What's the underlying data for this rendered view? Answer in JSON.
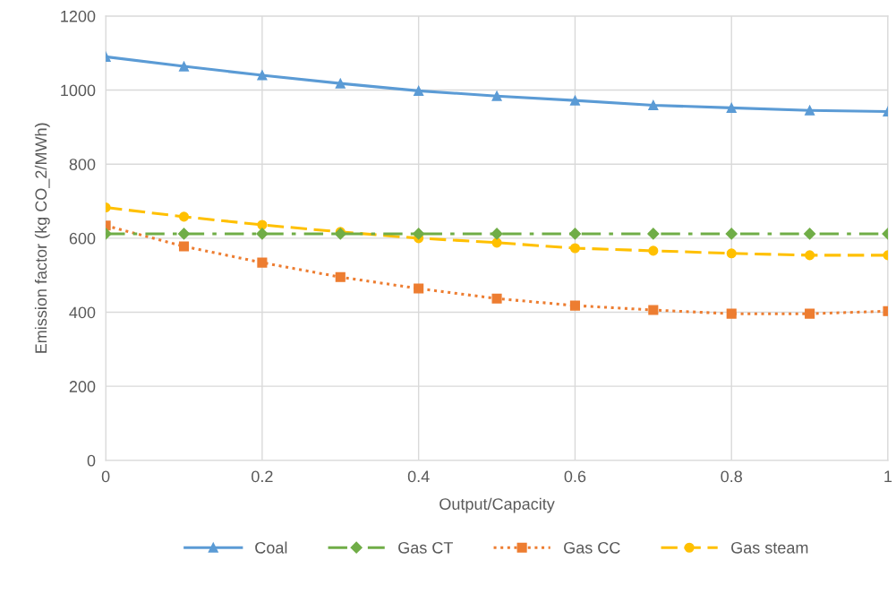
{
  "chart_data": {
    "type": "line",
    "xlabel": "Output/Capacity",
    "ylabel": "Emission factor (kg CO_2/MWh)",
    "x": [
      0,
      0.1,
      0.2,
      0.3,
      0.4,
      0.5,
      0.6,
      0.7,
      0.8,
      0.9,
      1
    ],
    "series": [
      {
        "name": "Coal",
        "color": "#5b9bd5",
        "marker": "triangle",
        "line_style": "solid",
        "values": [
          1090,
          1064,
          1040,
          1018,
          998,
          984,
          972,
          959,
          952,
          945,
          942
        ]
      },
      {
        "name": "Gas CT",
        "color": "#70ad47",
        "marker": "diamond",
        "line_style": "dashdot",
        "values": [
          612,
          612,
          612,
          612,
          612,
          612,
          612,
          612,
          612,
          612,
          612
        ]
      },
      {
        "name": "Gas CC",
        "color": "#ed7d31",
        "marker": "square",
        "line_style": "dotted",
        "values": [
          634,
          578,
          534,
          495,
          464,
          437,
          418,
          406,
          396,
          396,
          403
        ]
      },
      {
        "name": "Gas steam",
        "color": "#ffc000",
        "marker": "circle",
        "line_style": "dashed",
        "values": [
          683,
          658,
          636,
          617,
          600,
          588,
          573,
          566,
          559,
          554,
          554
        ]
      }
    ],
    "xlim": [
      0,
      1
    ],
    "xticks": [
      0,
      0.2,
      0.4,
      0.6,
      0.8,
      1
    ],
    "ylim": [
      0,
      1200
    ],
    "yticks": [
      0,
      200,
      400,
      600,
      800,
      1000,
      1200
    ],
    "grid": true,
    "legend": "bottom"
  }
}
